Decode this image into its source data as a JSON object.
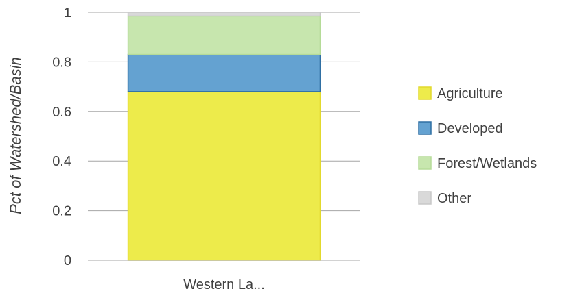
{
  "chart_data": {
    "type": "bar",
    "stacked": true,
    "categories": [
      "Western La..."
    ],
    "ylabel": "Pct of Watershed/Basin",
    "xlabel": "",
    "ylim": [
      0,
      1
    ],
    "yticks": [
      0,
      0.2,
      0.4,
      0.6,
      0.8,
      1
    ],
    "ytick_labels": [
      "0",
      "0.2",
      "0.4",
      "0.6",
      "0.8",
      "1"
    ],
    "grid": true,
    "legend_position": "right",
    "series": [
      {
        "name": "Agriculture",
        "values": [
          0.68
        ],
        "color": "#EDEB4B",
        "stroke": "#E2D92D"
      },
      {
        "name": "Developed",
        "values": [
          0.15
        ],
        "color": "#64A2D1",
        "stroke": "#2F6FA3"
      },
      {
        "name": "Forest/Wetlands",
        "values": [
          0.155
        ],
        "color": "#C7E6AE",
        "stroke": "#B5DB98"
      },
      {
        "name": "Other",
        "values": [
          0.015
        ],
        "color": "#D9D9D9",
        "stroke": "#C8C8C8"
      }
    ]
  }
}
